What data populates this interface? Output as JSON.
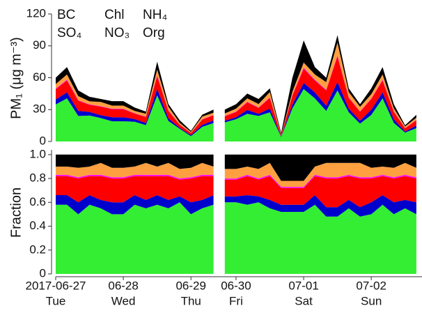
{
  "chart_data": [
    {
      "type": "stacked-area",
      "ylabel": "PM₁ (μg m⁻³)",
      "x": [
        "2017-06-27T00:00",
        "2017-06-27T04:00",
        "2017-06-27T08:00",
        "2017-06-27T12:00",
        "2017-06-27T16:00",
        "2017-06-27T20:00",
        "2017-06-28T00:00",
        "2017-06-28T04:00",
        "2017-06-28T08:00",
        "2017-06-28T12:00",
        "2017-06-28T16:00",
        "2017-06-28T20:00",
        "2017-06-29T00:00",
        "2017-06-29T04:00",
        "2017-06-29T08:00",
        "2017-06-29T12:00",
        "2017-06-29T20:00",
        "2017-06-30T00:00",
        "2017-06-30T04:00",
        "2017-06-30T08:00",
        "2017-06-30T12:00",
        "2017-06-30T16:00",
        "2017-06-30T20:00",
        "2017-07-01T00:00",
        "2017-07-01T04:00",
        "2017-07-01T08:00",
        "2017-07-01T12:00",
        "2017-07-01T16:00",
        "2017-07-01T20:00",
        "2017-07-02T00:00",
        "2017-07-02T04:00",
        "2017-07-02T08:00",
        "2017-07-02T12:00",
        "2017-07-02T16:00"
      ],
      "xlim": [
        "2017-06-27T00:00",
        "2017-07-02T18:00"
      ],
      "x_break": [
        "2017-06-29T10:00",
        "2017-06-29T18:00"
      ],
      "ylim": [
        0,
        120
      ],
      "yticks": [
        0,
        30,
        60,
        90,
        120
      ],
      "series": [
        {
          "name": "Org",
          "color": "#33ee33",
          "values": [
            34.8,
            40.6,
            24.0,
            24.4,
            22.0,
            19.0,
            19.0,
            18.6,
            15.4,
            43.5,
            19.3,
            12.0,
            5.0,
            13.8,
            17.4,
            null,
            18.0,
            21.0,
            26.1,
            24.0,
            27.5,
            4.2,
            31.2,
            49.4,
            40.6,
            28.8,
            48,
            27.5,
            16.8,
            25.0,
            40.6,
            17.5,
            8.3,
            12.5
          ]
        },
        {
          "name": "NO₃",
          "color": "#0000cc",
          "values": [
            4.8,
            5.6,
            4.8,
            3.4,
            2.8,
            3.8,
            3.8,
            2.6,
            2.0,
            6.0,
            2.5,
            1.0,
            1.0,
            1.8,
            2.4,
            null,
            1.5,
            1.8,
            3.6,
            2.0,
            3.5,
            0.5,
            3.6,
            5.7,
            5.6,
            4.8,
            8,
            3.5,
            2.8,
            5.0,
            5.6,
            3.5,
            1.1,
            2.5
          ]
        },
        {
          "name": "SO₄",
          "color": "#ff0000",
          "values": [
            9.6,
            11.2,
            9.6,
            6.7,
            8.0,
            7.6,
            7.6,
            5.1,
            5.6,
            12.0,
            7.0,
            2.8,
            2.0,
            5.0,
            4.8,
            null,
            4.2,
            4.9,
            7.2,
            5.6,
            10.0,
            1.1,
            8.4,
            13.3,
            11.2,
            14.4,
            24,
            10.0,
            8.4,
            10.0,
            11.2,
            7.0,
            3.0,
            5.0
          ]
        },
        {
          "name": "Chl",
          "color": "#ff00ff",
          "values": [
            0.6,
            0.7,
            0.5,
            0.4,
            0.4,
            0.4,
            0.4,
            0.3,
            0.3,
            0.8,
            0.4,
            0.2,
            0.1,
            0.3,
            0.3,
            null,
            0.3,
            0.4,
            0.5,
            0.4,
            0.5,
            0.1,
            0.6,
            1.0,
            0.7,
            0.6,
            1,
            0.5,
            0.4,
            0.5,
            0.7,
            0.4,
            0.2,
            0.3
          ]
        },
        {
          "name": "NH₄",
          "color": "#ffa040",
          "values": [
            4.2,
            4.9,
            3.8,
            2.9,
            4.0,
            3.0,
            3.0,
            2.2,
            2.8,
            5.3,
            3.5,
            1.6,
            0.8,
            2.5,
            2.1,
            null,
            2.4,
            2.8,
            3.2,
            3.2,
            5.0,
            0.4,
            3.0,
            4.8,
            4.9,
            7.2,
            12,
            5.0,
            4.2,
            4.0,
            4.9,
            2.8,
            1.5,
            2.0
          ]
        },
        {
          "name": "BC",
          "color": "#000000",
          "values": [
            6.0,
            7.0,
            5.3,
            4.2,
            2.8,
            4.2,
            4.2,
            3.2,
            2.0,
            7.5,
            2.5,
            2.4,
            1.1,
            1.8,
            3.0,
            null,
            3.6,
            4.2,
            4.5,
            4.8,
            3.5,
            1.8,
            13.2,
            20.9,
            7.0,
            4.2,
            7,
            3.5,
            2.5,
            5.5,
            7.0,
            3.9,
            1.1,
            2.8
          ]
        }
      ]
    },
    {
      "type": "stacked-area",
      "ylabel": "Fraction",
      "x": [
        "2017-06-27T00:00",
        "2017-06-27T04:00",
        "2017-06-27T08:00",
        "2017-06-27T12:00",
        "2017-06-27T16:00",
        "2017-06-27T20:00",
        "2017-06-28T00:00",
        "2017-06-28T04:00",
        "2017-06-28T08:00",
        "2017-06-28T12:00",
        "2017-06-28T16:00",
        "2017-06-28T20:00",
        "2017-06-29T00:00",
        "2017-06-29T04:00",
        "2017-06-29T08:00",
        "2017-06-29T12:00",
        "2017-06-29T20:00",
        "2017-06-30T00:00",
        "2017-06-30T04:00",
        "2017-06-30T08:00",
        "2017-06-30T12:00",
        "2017-06-30T16:00",
        "2017-06-30T20:00",
        "2017-07-01T00:00",
        "2017-07-01T04:00",
        "2017-07-01T08:00",
        "2017-07-01T12:00",
        "2017-07-01T16:00",
        "2017-07-01T20:00",
        "2017-07-02T00:00",
        "2017-07-02T04:00",
        "2017-07-02T08:00",
        "2017-07-02T12:00",
        "2017-07-02T16:00"
      ],
      "xlim": [
        "2017-06-27T00:00",
        "2017-07-02T18:00"
      ],
      "x_break": [
        "2017-06-29T10:00",
        "2017-06-29T18:00"
      ],
      "xticks": [
        {
          "value": "2017-06-27",
          "label": "2017-06-27"
        },
        {
          "value": "2017-06-28",
          "label": "06-28"
        },
        {
          "value": "2017-06-29",
          "label": "06-29"
        },
        {
          "value": "2017-06-30",
          "label": "06-30"
        },
        {
          "value": "2017-07-01",
          "label": "07-01"
        },
        {
          "value": "2017-07-02",
          "label": "07-02"
        }
      ],
      "xtick_weekdays": [
        "Tue",
        "Wed",
        "Thu",
        "Fri",
        "Sat",
        "Sun"
      ],
      "ylim": [
        0,
        1.04
      ],
      "yticks": [
        0,
        0.2,
        0.4,
        0.6,
        0.8,
        {
          "value": 1,
          "label": "1.0"
        }
      ],
      "series": [
        {
          "color": "#33ee33",
          "values": [
            0.58,
            0.58,
            0.5,
            0.58,
            0.55,
            0.5,
            0.5,
            0.58,
            0.55,
            0.58,
            0.55,
            0.6,
            0.5,
            0.55,
            0.58,
            null,
            0.6,
            0.6,
            0.58,
            0.6,
            0.55,
            0.52,
            0.52,
            0.52,
            0.58,
            0.48,
            0.48,
            0.55,
            0.48,
            0.5,
            0.58,
            0.5,
            0.55,
            0.5
          ]
        },
        {
          "color": "#0000cc",
          "values": [
            0.08,
            0.08,
            0.1,
            0.08,
            0.07,
            0.1,
            0.1,
            0.08,
            0.07,
            0.08,
            0.07,
            0.05,
            0.1,
            0.07,
            0.08,
            null,
            0.05,
            0.05,
            0.08,
            0.05,
            0.07,
            0.06,
            0.06,
            0.06,
            0.08,
            0.08,
            0.08,
            0.07,
            0.08,
            0.1,
            0.08,
            0.1,
            0.07,
            0.1
          ]
        },
        {
          "color": "#ff0000",
          "values": [
            0.16,
            0.16,
            0.2,
            0.16,
            0.2,
            0.2,
            0.2,
            0.16,
            0.2,
            0.16,
            0.2,
            0.14,
            0.2,
            0.2,
            0.16,
            null,
            0.14,
            0.14,
            0.16,
            0.14,
            0.2,
            0.14,
            0.14,
            0.14,
            0.16,
            0.24,
            0.24,
            0.2,
            0.24,
            0.2,
            0.16,
            0.2,
            0.2,
            0.2
          ]
        },
        {
          "color": "#ff00ff",
          "values": [
            0.01,
            0.01,
            0.01,
            0.01,
            0.01,
            0.01,
            0.01,
            0.01,
            0.01,
            0.01,
            0.01,
            0.01,
            0.01,
            0.01,
            0.01,
            null,
            0.01,
            0.01,
            0.01,
            0.01,
            0.01,
            0.01,
            0.01,
            0.01,
            0.01,
            0.01,
            0.01,
            0.01,
            0.01,
            0.01,
            0.01,
            0.01,
            0.01,
            0.01
          ]
        },
        {
          "color": "#ffa040",
          "values": [
            0.07,
            0.07,
            0.08,
            0.07,
            0.1,
            0.08,
            0.08,
            0.07,
            0.1,
            0.07,
            0.1,
            0.08,
            0.08,
            0.1,
            0.07,
            null,
            0.08,
            0.08,
            0.07,
            0.08,
            0.1,
            0.05,
            0.05,
            0.05,
            0.07,
            0.12,
            0.12,
            0.1,
            0.12,
            0.08,
            0.07,
            0.08,
            0.1,
            0.08
          ]
        },
        {
          "color": "#000000",
          "values": [
            0.1,
            0.1,
            0.11,
            0.1,
            0.07,
            0.11,
            0.11,
            0.1,
            0.07,
            0.1,
            0.07,
            0.12,
            0.11,
            0.07,
            0.1,
            null,
            0.12,
            0.12,
            0.1,
            0.12,
            0.07,
            0.22,
            0.22,
            0.22,
            0.1,
            0.07,
            0.07,
            0.07,
            0.07,
            0.11,
            0.1,
            0.11,
            0.07,
            0.11
          ]
        }
      ]
    }
  ]
}
